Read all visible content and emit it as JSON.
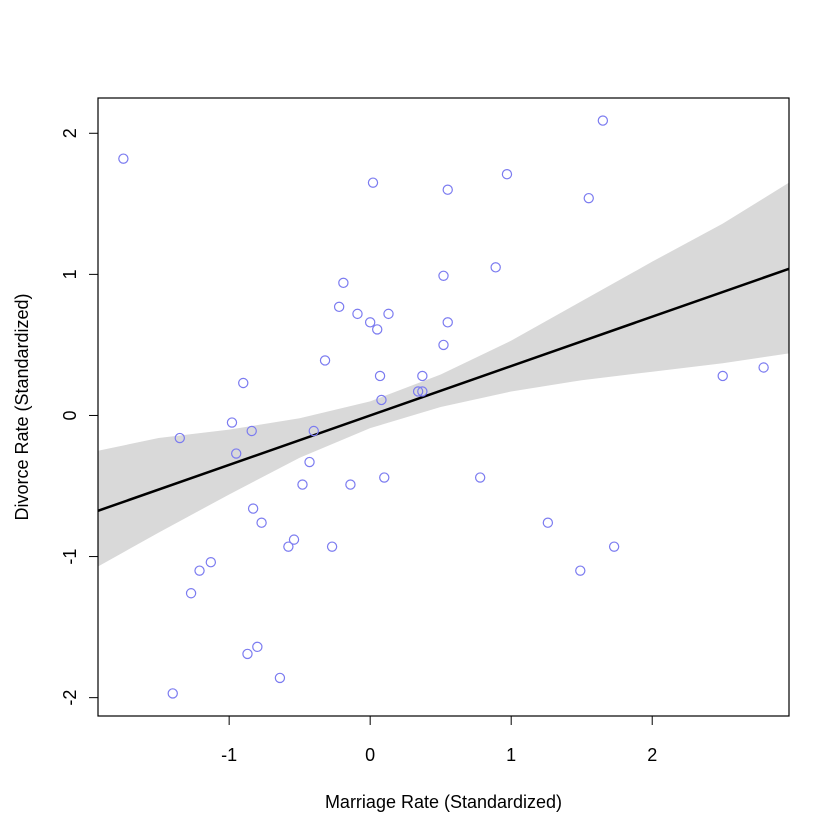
{
  "chart_data": {
    "type": "scatter",
    "title": "",
    "xlabel": "Marriage Rate (Standardized)",
    "ylabel": "Divorce Rate (Standardized)",
    "xlim": [
      -1.93,
      2.97
    ],
    "ylim": [
      -2.13,
      2.25
    ],
    "xticks": [
      -1,
      0,
      1,
      2
    ],
    "yticks": [
      -2,
      -1,
      0,
      1,
      2
    ],
    "xtick_labels": [
      "-1",
      "0",
      "1",
      "2"
    ],
    "ytick_labels": [
      "-2",
      "-1",
      "0",
      "1",
      "2"
    ],
    "grid": false,
    "points": {
      "x": [
        -1.75,
        1.65,
        0.02,
        0.55,
        0.97,
        1.55,
        -0.19,
        -0.22,
        -0.09,
        0.0,
        0.05,
        0.13,
        0.52,
        0.89,
        0.55,
        0.52,
        -0.32,
        0.07,
        0.37,
        0.34,
        0.37,
        0.08,
        -0.9,
        -0.98,
        -1.35,
        -0.84,
        -0.4,
        -0.95,
        -0.43,
        -0.48,
        0.1,
        -0.14,
        -0.83,
        -0.77,
        0.78,
        -0.54,
        -0.58,
        -0.27,
        1.26,
        1.73,
        -1.13,
        -1.21,
        1.49,
        -1.27,
        -0.8,
        -0.87,
        -0.64,
        -1.4,
        2.5,
        2.79
      ],
      "y": [
        1.82,
        2.09,
        1.65,
        1.6,
        1.71,
        1.54,
        0.94,
        0.77,
        0.72,
        0.66,
        0.61,
        0.72,
        0.99,
        1.05,
        0.66,
        0.5,
        0.39,
        0.28,
        0.28,
        0.17,
        0.17,
        0.11,
        0.23,
        -0.05,
        -0.16,
        -0.11,
        -0.11,
        -0.27,
        -0.33,
        -0.49,
        -0.44,
        -0.49,
        -0.66,
        -0.76,
        -0.44,
        -0.88,
        -0.93,
        -0.93,
        -0.76,
        -0.93,
        -1.04,
        -1.1,
        -1.1,
        -1.26,
        -1.64,
        -1.69,
        -1.86,
        -1.97,
        0.28,
        0.34
      ]
    },
    "regression_line": {
      "intercept": 0.0,
      "slope": 0.35
    },
    "interval": {
      "x": [
        -1.93,
        -1.5,
        -1.0,
        -0.5,
        0.0,
        0.5,
        1.0,
        1.5,
        2.0,
        2.5,
        2.97
      ],
      "lower": [
        -1.07,
        -0.83,
        -0.56,
        -0.3,
        -0.09,
        0.06,
        0.17,
        0.25,
        0.31,
        0.37,
        0.44
      ],
      "upper": [
        -0.25,
        -0.16,
        -0.1,
        -0.02,
        0.1,
        0.29,
        0.53,
        0.81,
        1.09,
        1.36,
        1.65
      ]
    },
    "colors": {
      "points": "#7b7bf0",
      "line": "#000000",
      "interval": "#d9d9d9",
      "frame": "#000000"
    }
  }
}
